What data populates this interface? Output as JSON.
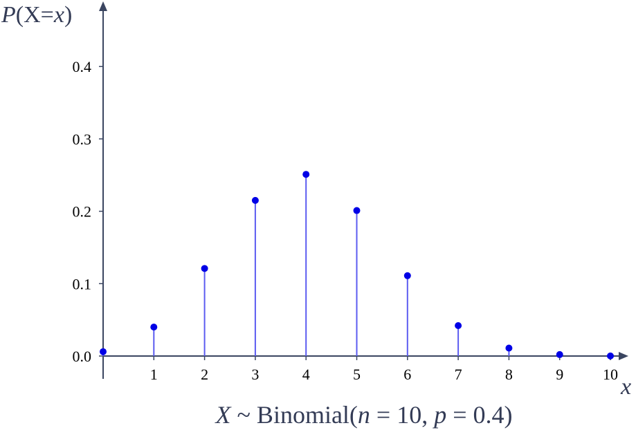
{
  "chart_data": {
    "type": "stem",
    "title": "",
    "xlabel": "x",
    "ylabel": "P(X=x)",
    "caption": "X ~ Binomial(n = 10, p = 0.4)",
    "x": [
      0,
      1,
      2,
      3,
      4,
      5,
      6,
      7,
      8,
      9,
      10
    ],
    "values": [
      0.006,
      0.04,
      0.121,
      0.215,
      0.251,
      0.201,
      0.111,
      0.042,
      0.011,
      0.002,
      0.0001
    ],
    "xticks": [
      "1",
      "2",
      "3",
      "4",
      "5",
      "6",
      "7",
      "8",
      "9",
      "10"
    ],
    "yticks": [
      "0.0",
      "0.1",
      "0.2",
      "0.3",
      "0.4"
    ],
    "xlim": [
      0,
      10.2
    ],
    "ylim": [
      0,
      0.48
    ],
    "grid": false,
    "colors": {
      "stem": "#5b5bf0",
      "marker": "#0000e6",
      "axis": "#3a4560",
      "text": "#333b55"
    }
  }
}
